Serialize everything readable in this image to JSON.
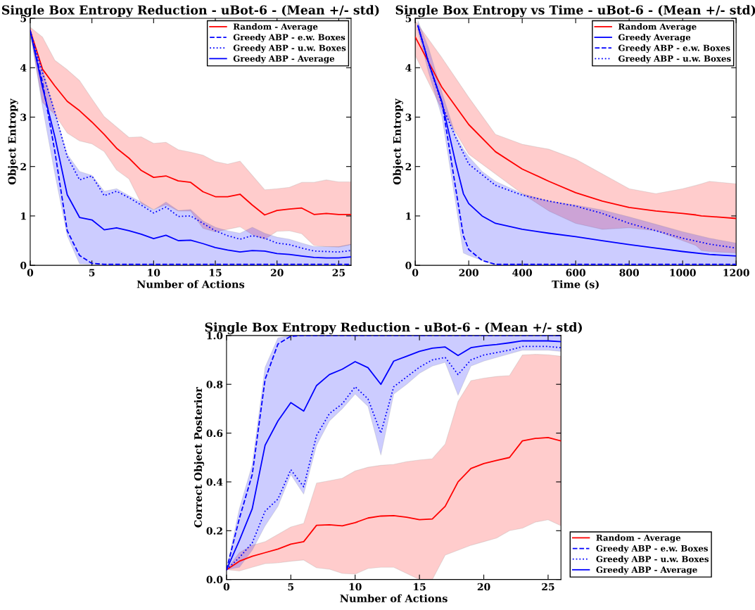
{
  "chart_data": [
    {
      "type": "line",
      "title": "Single Box Entropy Reduction - uBot-6 - (Mean +/- std)",
      "xlabel": "Number of Actions",
      "ylabel": "Object Entropy",
      "xlim": [
        0,
        26
      ],
      "ylim": [
        0,
        5
      ],
      "xticks": [
        0,
        5,
        10,
        15,
        20,
        25
      ],
      "yticks": [
        0,
        1,
        2,
        3,
        4,
        5
      ],
      "legend": "top right",
      "x": [
        0,
        1,
        2,
        3,
        4,
        5,
        6,
        7,
        8,
        9,
        10,
        11,
        12,
        13,
        14,
        15,
        16,
        17,
        18,
        19,
        20,
        21,
        22,
        23,
        24,
        25,
        26
      ],
      "series": [
        {
          "name": "Random - Average",
          "color": "#ff0000",
          "line_style": "solid",
          "values": [
            4.75,
            3.97,
            3.63,
            3.32,
            3.13,
            2.9,
            2.65,
            2.37,
            2.17,
            1.92,
            1.78,
            1.81,
            1.71,
            1.68,
            1.49,
            1.39,
            1.39,
            1.44,
            1.22,
            1.02,
            1.11,
            1.14,
            1.16,
            1.03,
            1.05,
            1.03,
            1.03
          ],
          "upper": [
            4.82,
            4.62,
            4.15,
            3.96,
            3.74,
            3.37,
            3.01,
            2.8,
            2.59,
            2.6,
            2.47,
            2.49,
            2.34,
            2.29,
            2.23,
            2.1,
            2.05,
            2.11,
            1.82,
            1.53,
            1.55,
            1.58,
            1.68,
            1.68,
            1.73,
            1.69,
            1.69
          ],
          "lower": [
            4.68,
            3.3,
            3.05,
            2.68,
            2.52,
            2.46,
            2.3,
            1.93,
            1.75,
            1.25,
            1.13,
            1.23,
            1.1,
            1.1,
            0.75,
            0.68,
            0.73,
            0.78,
            0.62,
            0.53,
            0.69,
            0.7,
            0.64,
            0.4,
            0.38,
            0.37,
            0.42
          ]
        },
        {
          "name": "Greedy ABP - e.w. Boxes",
          "color": "#0000ff",
          "line_style": "dashed",
          "values": [
            4.75,
            3.7,
            2.3,
            0.7,
            0.2,
            0.04,
            0.02,
            0.02,
            0.02,
            0.02,
            0.02,
            0.02,
            0.02,
            0.02,
            0.02,
            0.02,
            0.02,
            0.02,
            0.02,
            0.02,
            0.02,
            0.02,
            0.02,
            0.02,
            0.02,
            0.02,
            0.02
          ]
        },
        {
          "name": "Greedy ABP - u.w. Boxes",
          "color": "#0000ff",
          "line_style": "dotted",
          "values": [
            4.75,
            3.9,
            3.1,
            2.2,
            1.73,
            1.81,
            1.41,
            1.5,
            1.37,
            1.22,
            1.06,
            1.18,
            0.99,
            1.0,
            0.85,
            0.7,
            0.6,
            0.53,
            0.6,
            0.55,
            0.45,
            0.42,
            0.35,
            0.29,
            0.28,
            0.27,
            0.3
          ]
        },
        {
          "name": "Greedy ABP - Average",
          "color": "#0000ff",
          "line_style": "solid",
          "values": [
            4.75,
            3.6,
            2.6,
            1.43,
            0.97,
            0.92,
            0.72,
            0.76,
            0.7,
            0.63,
            0.54,
            0.61,
            0.5,
            0.51,
            0.44,
            0.36,
            0.31,
            0.27,
            0.3,
            0.29,
            0.24,
            0.22,
            0.19,
            0.16,
            0.15,
            0.15,
            0.17
          ],
          "upper": [
            4.75,
            3.95,
            3.1,
            2.25,
            1.9,
            1.82,
            1.5,
            1.55,
            1.41,
            1.28,
            1.12,
            1.28,
            1.11,
            1.13,
            0.9,
            0.77,
            0.7,
            0.65,
            0.77,
            0.65,
            0.57,
            0.53,
            0.45,
            0.38,
            0.38,
            0.38,
            0.43
          ],
          "lower": [
            4.75,
            3.2,
            1.85,
            0.6,
            0.03,
            0.02,
            0.02,
            0.02,
            0.02,
            0.02,
            0.02,
            0.02,
            0.02,
            0.02,
            0.02,
            0.02,
            0.02,
            0.02,
            0.02,
            0.02,
            0.02,
            0.02,
            0.02,
            0.02,
            0.02,
            0.02,
            0.02
          ]
        }
      ]
    },
    {
      "type": "line",
      "title": "Single Box Entropy vs Time - uBot-6 - (Mean +/- std)",
      "xlabel": "Time (s)",
      "ylabel": "Object Entropy",
      "xlim": [
        0,
        1200
      ],
      "ylim": [
        0,
        5
      ],
      "xticks": [
        0,
        200,
        400,
        600,
        800,
        1000,
        1200
      ],
      "yticks": [
        0,
        1,
        2,
        3,
        4,
        5
      ],
      "legend": "top right",
      "series": [
        {
          "name": "Random Average",
          "color": "#ff0000",
          "line_style": "solid",
          "x": [
            0,
            100,
            200,
            300,
            400,
            500,
            600,
            700,
            800,
            900,
            1000,
            1050,
            1070,
            1100,
            1200
          ],
          "values": [
            4.62,
            3.6,
            2.85,
            2.3,
            1.95,
            1.7,
            1.47,
            1.3,
            1.17,
            1.1,
            1.05,
            1.02,
            1.0,
            0.99,
            0.95
          ],
          "upper": [
            4.95,
            4.2,
            3.4,
            2.65,
            2.45,
            2.35,
            2.15,
            1.85,
            1.55,
            1.45,
            1.55,
            1.62,
            1.65,
            1.7,
            1.65
          ],
          "lower": [
            4.25,
            3.15,
            2.25,
            1.85,
            1.45,
            1.1,
            0.85,
            0.73,
            0.76,
            0.7,
            0.5,
            0.4,
            0.3,
            0.28,
            0.25
          ]
        },
        {
          "name": "Greedy Average",
          "color": "#0000ff",
          "line_style": "solid",
          "x": [
            10,
            50,
            100,
            150,
            180,
            200,
            250,
            300,
            400,
            500,
            600,
            700,
            800,
            900,
            1000,
            1100,
            1200
          ],
          "values": [
            4.85,
            4.1,
            3.3,
            2.1,
            1.45,
            1.25,
            1.0,
            0.85,
            0.73,
            0.65,
            0.58,
            0.5,
            0.42,
            0.35,
            0.28,
            0.22,
            0.19
          ],
          "upper": [
            4.95,
            4.4,
            3.5,
            2.65,
            2.35,
            2.2,
            1.9,
            1.7,
            1.45,
            1.3,
            1.22,
            1.12,
            0.98,
            0.83,
            0.68,
            0.55,
            0.45
          ],
          "lower": [
            4.75,
            3.9,
            3.0,
            1.3,
            0.25,
            0.2,
            0.1,
            0.0,
            0.0,
            0.0,
            0.0,
            0.0,
            0.0,
            0.0,
            0.0,
            0.0,
            0.0
          ]
        },
        {
          "name": "Greedy ABP - e.w. Boxes",
          "color": "#0000ff",
          "line_style": "dashed",
          "x": [
            10,
            50,
            100,
            150,
            180,
            200,
            250,
            300,
            400,
            600,
            800,
            1000,
            1200
          ],
          "values": [
            4.85,
            4.1,
            3.3,
            1.6,
            0.6,
            0.32,
            0.1,
            0.02,
            0.02,
            0.02,
            0.02,
            0.02,
            0.02
          ]
        },
        {
          "name": "Greedy ABP - u.w. Boxes",
          "color": "#0000ff",
          "line_style": "dotted",
          "x": [
            10,
            50,
            100,
            150,
            200,
            300,
            400,
            500,
            600,
            700,
            800,
            900,
            1000,
            1100,
            1200
          ],
          "values": [
            4.85,
            4.1,
            3.25,
            2.6,
            2.05,
            1.62,
            1.42,
            1.3,
            1.2,
            1.05,
            0.85,
            0.7,
            0.55,
            0.43,
            0.35
          ]
        }
      ]
    },
    {
      "type": "line",
      "title": "Single Box Entropy Reduction - uBot-6 - (Mean +/- std)",
      "xlabel": "Number of Actions",
      "ylabel": "Correct Object Posterior",
      "xlim": [
        0,
        26
      ],
      "ylim": [
        0,
        1
      ],
      "xticks": [
        0,
        5,
        10,
        15,
        20,
        25
      ],
      "yticks": [
        {
          "value": 0,
          "label": "0.0"
        },
        0.2,
        0.4,
        0.6,
        0.8,
        {
          "value": 1,
          "label": "1.0"
        }
      ],
      "legend": "right",
      "x": [
        0,
        1,
        2,
        3,
        4,
        5,
        6,
        7,
        8,
        9,
        10,
        11,
        12,
        13,
        14,
        15,
        16,
        17,
        18,
        19,
        20,
        21,
        22,
        23,
        24,
        25,
        26
      ],
      "series": [
        {
          "name": "Random - Average",
          "color": "#ff0000",
          "line_style": "solid",
          "values": [
            0.04,
            0.075,
            0.095,
            0.11,
            0.125,
            0.145,
            0.155,
            0.222,
            0.224,
            0.22,
            0.233,
            0.252,
            0.26,
            0.262,
            0.255,
            0.245,
            0.248,
            0.3,
            0.4,
            0.455,
            0.475,
            0.488,
            0.5,
            0.568,
            0.578,
            0.582,
            0.568
          ],
          "upper": [
            0.04,
            0.11,
            0.14,
            0.155,
            0.185,
            0.215,
            0.23,
            0.395,
            0.405,
            0.415,
            0.445,
            0.46,
            0.468,
            0.472,
            0.483,
            0.49,
            0.495,
            0.555,
            0.73,
            0.815,
            0.825,
            0.832,
            0.836,
            0.92,
            0.923,
            0.921,
            0.915
          ],
          "lower": [
            0.04,
            0.035,
            0.05,
            0.065,
            0.068,
            0.075,
            0.08,
            0.048,
            0.042,
            0.025,
            0.022,
            0.045,
            0.05,
            0.05,
            0.025,
            0.0,
            0.0,
            0.1,
            0.12,
            0.14,
            0.155,
            0.17,
            0.2,
            0.21,
            0.235,
            0.245,
            0.22
          ]
        },
        {
          "name": "Greedy ABP - e.w. Boxes",
          "color": "#0000ff",
          "line_style": "dashed",
          "values": [
            0.04,
            0.25,
            0.43,
            0.82,
            0.965,
            0.997,
            1.0,
            1.0,
            1.0,
            1.0,
            1.0,
            1.0,
            1.0,
            1.0,
            1.0,
            1.0,
            1.0,
            1.0,
            1.0,
            1.0,
            1.0,
            1.0,
            1.0,
            1.0,
            1.0,
            1.0,
            1.0
          ]
        },
        {
          "name": "Greedy ABP - u.w. Boxes",
          "color": "#0000ff",
          "line_style": "dotted",
          "values": [
            0.04,
            0.09,
            0.15,
            0.28,
            0.33,
            0.45,
            0.38,
            0.59,
            0.68,
            0.72,
            0.79,
            0.74,
            0.6,
            0.79,
            0.83,
            0.87,
            0.9,
            0.91,
            0.84,
            0.9,
            0.92,
            0.93,
            0.94,
            0.955,
            0.955,
            0.955,
            0.95
          ]
        },
        {
          "name": "Greedy ABP - Average",
          "color": "#0000ff",
          "line_style": "solid",
          "values": [
            0.04,
            0.16,
            0.29,
            0.55,
            0.65,
            0.725,
            0.69,
            0.795,
            0.84,
            0.862,
            0.893,
            0.868,
            0.8,
            0.895,
            0.915,
            0.935,
            0.948,
            0.953,
            0.918,
            0.95,
            0.958,
            0.963,
            0.97,
            0.978,
            0.978,
            0.978,
            0.975
          ],
          "upper": [
            0.04,
            0.29,
            0.47,
            0.87,
            0.99,
            1.0,
            1.0,
            1.0,
            1.0,
            1.0,
            1.0,
            1.0,
            1.0,
            1.0,
            1.0,
            1.0,
            1.0,
            1.0,
            1.0,
            1.0,
            1.0,
            1.0,
            1.0,
            1.0,
            1.0,
            1.0,
            1.0
          ],
          "lower": [
            0.04,
            0.05,
            0.12,
            0.22,
            0.3,
            0.43,
            0.35,
            0.55,
            0.65,
            0.7,
            0.76,
            0.71,
            0.51,
            0.76,
            0.8,
            0.845,
            0.875,
            0.89,
            0.755,
            0.875,
            0.895,
            0.91,
            0.925,
            0.94,
            0.94,
            0.94,
            0.935
          ]
        }
      ]
    }
  ]
}
